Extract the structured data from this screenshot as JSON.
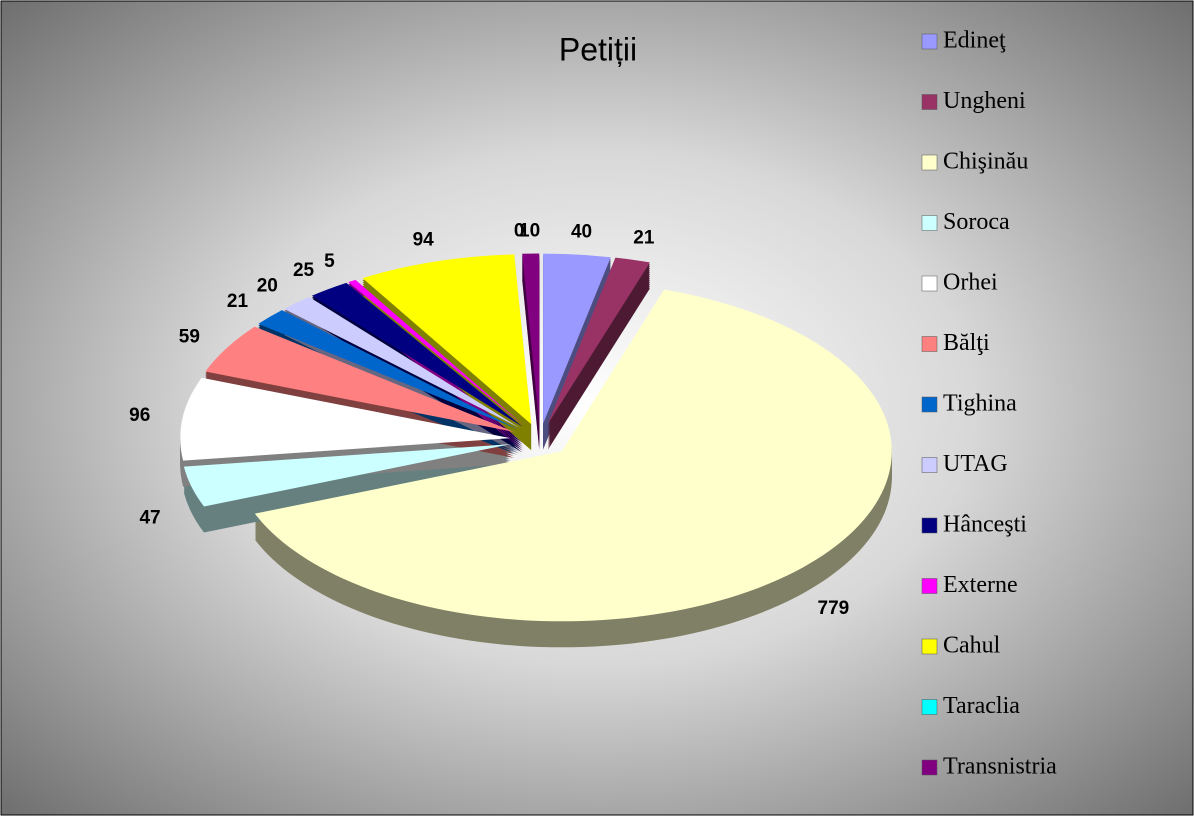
{
  "chart_data": {
    "type": "pie",
    "title": "Petiții",
    "categories": [
      "Edineţ",
      "Ungheni",
      "Chişinău",
      "Soroca",
      "Orhei",
      "Bălţi",
      "Tighina",
      "UTAG",
      "Hânceşti",
      "Externe",
      "Cahul",
      "Taraclia",
      "Transnistria"
    ],
    "values": [
      40,
      21,
      779,
      47,
      96,
      59,
      21,
      20,
      25,
      5,
      94,
      0,
      10
    ],
    "colors": [
      "#9999ff",
      "#993366",
      "#ffffcc",
      "#ccffff",
      "#ffffff",
      "#ff8080",
      "#0066cc",
      "#ccccff",
      "#000080",
      "#ff00ff",
      "#ffff00",
      "#00ffff",
      "#800080"
    ],
    "legend": "right"
  }
}
